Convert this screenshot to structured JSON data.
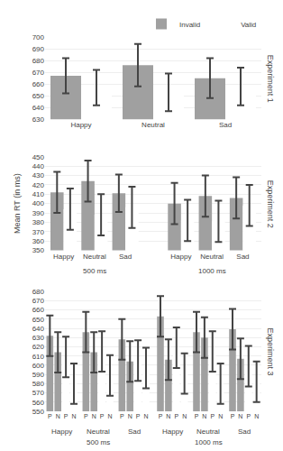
{
  "chart_data": [
    {
      "type": "bar",
      "categories": [
        "Happy",
        "Neutral",
        "Sad"
      ],
      "series": [
        {
          "name": "Invalid",
          "color": "#a0a0a0",
          "values": [
            667,
            676,
            665
          ],
          "errors": [
            15,
            18,
            17
          ]
        },
        {
          "name": "Valid",
          "color": "#ffffff",
          "values": [
            657,
            653,
            658
          ],
          "errors": [
            15,
            16,
            16
          ]
        }
      ],
      "ylim": [
        630,
        700
      ],
      "yticks": [
        630,
        640,
        650,
        660,
        670,
        680,
        690,
        700
      ],
      "legend": "upper right",
      "annotations": [
        "Experiment 1"
      ]
    },
    {
      "type": "bar",
      "groups": [
        {
          "name": "500 ms",
          "categories": [
            "Happy",
            "Neutral",
            "Sad"
          ]
        },
        {
          "name": "1000 ms",
          "categories": [
            "Happy",
            "Neutral",
            "Sad"
          ]
        }
      ],
      "series": [
        {
          "color": "#a0a0a0",
          "values": [
            412,
            424,
            411,
            400,
            408,
            406
          ],
          "errors": [
            22,
            22,
            20,
            22,
            22,
            22
          ]
        },
        {
          "color": "#ffffff",
          "values": [
            394,
            388,
            396,
            382,
            381,
            398
          ],
          "errors": [
            22,
            22,
            22,
            22,
            22,
            22
          ]
        }
      ],
      "ylabel": "Mean RT (in ms)",
      "ylim": [
        350,
        450
      ],
      "yticks": [
        350,
        360,
        370,
        380,
        390,
        400,
        410,
        420,
        430,
        440,
        450
      ],
      "annotations": [
        "Experiment 2"
      ]
    },
    {
      "type": "bar",
      "groups": [
        {
          "name": "500 ms",
          "groups": [
            {
              "name": "Happy",
              "categories": [
                "P",
                "N",
                "P",
                "N"
              ],
              "values": [
                632,
                614,
                609,
                580
              ],
              "errors": [
                22,
                22,
                22,
                22
              ],
              "colors": [
                "#a0a0a0",
                "#a0a0a0",
                "#ffffff",
                "#ffffff"
              ]
            },
            {
              "name": "Neutral",
              "categories": [
                "P",
                "N",
                "P",
                "N"
              ],
              "values": [
                636,
                614,
                615,
                589
              ],
              "errors": [
                22,
                22,
                22,
                22
              ],
              "colors": [
                "#a0a0a0",
                "#a0a0a0",
                "#ffffff",
                "#ffffff"
              ]
            },
            {
              "name": "Sad",
              "categories": [
                "P",
                "N",
                "P",
                "N"
              ],
              "values": [
                628,
                604,
                605,
                597
              ],
              "errors": [
                22,
                22,
                22,
                22
              ],
              "colors": [
                "#a0a0a0",
                "#a0a0a0",
                "#ffffff",
                "#ffffff"
              ]
            }
          ]
        },
        {
          "name": "1000 ms",
          "groups": [
            {
              "name": "Happy",
              "categories": [
                "P",
                "N",
                "P",
                "N"
              ],
              "values": [
                653,
                606,
                619,
                591
              ],
              "errors": [
                22,
                22,
                22,
                22
              ],
              "colors": [
                "#a0a0a0",
                "#a0a0a0",
                "#ffffff",
                "#ffffff"
              ]
            },
            {
              "name": "Neutral",
              "categories": [
                "P",
                "N",
                "P",
                "N"
              ],
              "values": [
                636,
                630,
                615,
                580
              ],
              "errors": [
                22,
                22,
                22,
                22
              ],
              "colors": [
                "#a0a0a0",
                "#a0a0a0",
                "#ffffff",
                "#ffffff"
              ]
            },
            {
              "name": "Sad",
              "categories": [
                "P",
                "N",
                "P",
                "N"
              ],
              "values": [
                639,
                607,
                599,
                582
              ],
              "errors": [
                22,
                22,
                22,
                22
              ],
              "colors": [
                "#a0a0a0",
                "#a0a0a0",
                "#ffffff",
                "#ffffff"
              ]
            }
          ]
        }
      ],
      "ylim": [
        550,
        680
      ],
      "yticks": [
        550,
        560,
        570,
        580,
        590,
        600,
        610,
        620,
        630,
        640,
        650,
        660,
        670,
        680
      ],
      "annotations": [
        "Experiment 3"
      ]
    }
  ]
}
